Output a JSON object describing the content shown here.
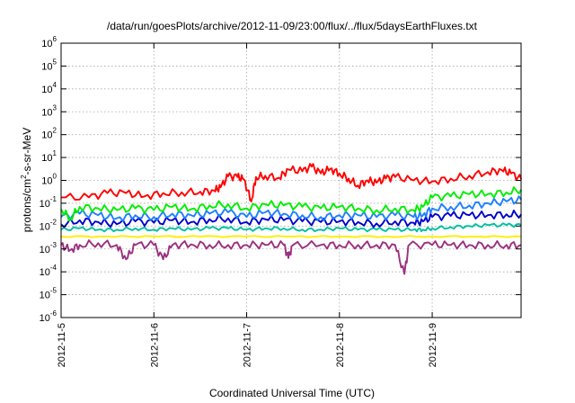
{
  "chart_data": {
    "type": "line",
    "title": "/data/run/goesPlots/archive/2012-11-09/23:00/flux/../flux/5daysEarthFluxes.txt",
    "xlabel": "Coordinated Universal Time (UTC)",
    "ylabel": "protons/cm2-s-sr-MeV",
    "ylabel_parts": {
      "pre": "protons/cm",
      "sup": "2",
      "post": "-s-sr-MeV"
    },
    "y_scale": "log",
    "ylim": [
      1e-06,
      1000000.0
    ],
    "y_ticks": [
      {
        "value": 1000000.0,
        "base": "10",
        "exp": "6"
      },
      {
        "value": 100000.0,
        "base": "10",
        "exp": "5"
      },
      {
        "value": 10000.0,
        "base": "10",
        "exp": "4"
      },
      {
        "value": 1000.0,
        "base": "10",
        "exp": "3"
      },
      {
        "value": 100.0,
        "base": "10",
        "exp": "2"
      },
      {
        "value": 10.0,
        "base": "10",
        "exp": "1"
      },
      {
        "value": 1.0,
        "base": "10",
        "exp": "0"
      },
      {
        "value": 0.1,
        "base": "10",
        "exp": "-1"
      },
      {
        "value": 0.01,
        "base": "10",
        "exp": "-2"
      },
      {
        "value": 0.001,
        "base": "10",
        "exp": "-3"
      },
      {
        "value": 0.0001,
        "base": "10",
        "exp": "-4"
      },
      {
        "value": 1e-05,
        "base": "10",
        "exp": "-5"
      },
      {
        "value": 1e-06,
        "base": "10",
        "exp": "-6"
      }
    ],
    "xlim": [
      "2012-11-05",
      "2012-11-09 23:00"
    ],
    "x_ticks": [
      "2012-11-5",
      "2012-11-6",
      "2012-11-7",
      "2012-11-8",
      "2012-11-9"
    ],
    "grid": true,
    "legend": "none",
    "series": [
      {
        "color": "#ff0000",
        "values": [
          [
            0,
            0.18
          ],
          [
            0.3,
            0.18
          ],
          [
            0.5,
            0.28
          ],
          [
            0.7,
            0.28
          ],
          [
            0.9,
            0.2
          ],
          [
            1.1,
            0.28
          ],
          [
            1.3,
            0.3
          ],
          [
            1.5,
            0.32
          ],
          [
            1.65,
            0.36
          ],
          [
            1.72,
            0.5
          ],
          [
            1.8,
            1.5
          ],
          [
            1.9,
            1.4
          ],
          [
            1.97,
            1.1
          ],
          [
            2.05,
            0.12
          ],
          [
            2.1,
            1.4
          ],
          [
            2.2,
            1.6
          ],
          [
            2.35,
            1.3
          ],
          [
            2.45,
            3.0
          ],
          [
            2.6,
            2.5
          ],
          [
            2.7,
            4.0
          ],
          [
            2.8,
            2.0
          ],
          [
            2.9,
            3.2
          ],
          [
            3.0,
            2.0
          ],
          [
            3.1,
            1.2
          ],
          [
            3.2,
            0.6
          ],
          [
            3.3,
            1.0
          ],
          [
            3.4,
            0.8
          ],
          [
            3.5,
            1.2
          ],
          [
            3.6,
            1.4
          ],
          [
            3.8,
            1.0
          ],
          [
            4.0,
            0.9
          ],
          [
            4.2,
            1.2
          ],
          [
            4.4,
            1.6
          ],
          [
            4.6,
            2.3
          ],
          [
            4.75,
            2.8
          ],
          [
            4.85,
            2.0
          ],
          [
            4.96,
            1.1
          ]
        ]
      },
      {
        "color": "#00ee00",
        "values": [
          [
            0,
            0.055
          ],
          [
            0.1,
            0.022
          ],
          [
            0.2,
            0.07
          ],
          [
            0.4,
            0.06
          ],
          [
            0.6,
            0.05
          ],
          [
            0.8,
            0.06
          ],
          [
            1.0,
            0.05
          ],
          [
            1.2,
            0.07
          ],
          [
            1.4,
            0.055
          ],
          [
            1.6,
            0.08
          ],
          [
            1.8,
            0.09
          ],
          [
            2.0,
            0.06
          ],
          [
            2.2,
            0.09
          ],
          [
            2.4,
            0.08
          ],
          [
            2.6,
            0.07
          ],
          [
            2.8,
            0.06
          ],
          [
            3.0,
            0.07
          ],
          [
            3.2,
            0.06
          ],
          [
            3.4,
            0.05
          ],
          [
            3.6,
            0.06
          ],
          [
            3.8,
            0.05
          ],
          [
            3.9,
            0.07
          ],
          [
            4.0,
            0.18
          ],
          [
            4.2,
            0.2
          ],
          [
            4.4,
            0.25
          ],
          [
            4.6,
            0.25
          ],
          [
            4.8,
            0.3
          ],
          [
            4.96,
            0.4
          ]
        ]
      },
      {
        "color": "#1e7fff",
        "values": [
          [
            0,
            0.025
          ],
          [
            0.2,
            0.035
          ],
          [
            0.4,
            0.03
          ],
          [
            0.6,
            0.022
          ],
          [
            0.8,
            0.03
          ],
          [
            1.0,
            0.025
          ],
          [
            1.2,
            0.035
          ],
          [
            1.4,
            0.03
          ],
          [
            1.6,
            0.035
          ],
          [
            1.8,
            0.04
          ],
          [
            2.0,
            0.025
          ],
          [
            2.2,
            0.04
          ],
          [
            2.4,
            0.035
          ],
          [
            2.6,
            0.03
          ],
          [
            2.8,
            0.025
          ],
          [
            3.0,
            0.03
          ],
          [
            3.2,
            0.03
          ],
          [
            3.4,
            0.025
          ],
          [
            3.6,
            0.03
          ],
          [
            3.8,
            0.025
          ],
          [
            3.9,
            0.03
          ],
          [
            4.0,
            0.06
          ],
          [
            4.2,
            0.07
          ],
          [
            4.4,
            0.08
          ],
          [
            4.6,
            0.1
          ],
          [
            4.8,
            0.12
          ],
          [
            4.96,
            0.14
          ]
        ]
      },
      {
        "color": "#0000cc",
        "values": [
          [
            0,
            0.012
          ],
          [
            0.2,
            0.018
          ],
          [
            0.4,
            0.015
          ],
          [
            0.6,
            0.012
          ],
          [
            0.8,
            0.016
          ],
          [
            1.0,
            0.014
          ],
          [
            1.2,
            0.018
          ],
          [
            1.4,
            0.015
          ],
          [
            1.6,
            0.02
          ],
          [
            1.8,
            0.022
          ],
          [
            2.0,
            0.015
          ],
          [
            2.2,
            0.02
          ],
          [
            2.4,
            0.018
          ],
          [
            2.6,
            0.016
          ],
          [
            2.8,
            0.015
          ],
          [
            3.0,
            0.016
          ],
          [
            3.2,
            0.015
          ],
          [
            3.4,
            0.013
          ],
          [
            3.6,
            0.016
          ],
          [
            3.8,
            0.014
          ],
          [
            3.9,
            0.016
          ],
          [
            4.0,
            0.025
          ],
          [
            4.2,
            0.028
          ],
          [
            4.4,
            0.03
          ],
          [
            4.6,
            0.03
          ],
          [
            4.8,
            0.033
          ],
          [
            4.96,
            0.033
          ]
        ]
      },
      {
        "color": "#00c0a0",
        "values": [
          [
            0,
            0.007
          ],
          [
            0.2,
            0.008
          ],
          [
            0.4,
            0.007
          ],
          [
            0.6,
            0.007
          ],
          [
            0.8,
            0.008
          ],
          [
            1.0,
            0.007
          ],
          [
            1.2,
            0.008
          ],
          [
            1.4,
            0.007
          ],
          [
            1.6,
            0.008
          ],
          [
            1.8,
            0.008
          ],
          [
            2.0,
            0.007
          ],
          [
            2.2,
            0.008
          ],
          [
            2.4,
            0.008
          ],
          [
            2.6,
            0.007
          ],
          [
            2.8,
            0.007
          ],
          [
            3.0,
            0.008
          ],
          [
            3.2,
            0.007
          ],
          [
            3.4,
            0.007
          ],
          [
            3.6,
            0.007
          ],
          [
            3.8,
            0.007
          ],
          [
            3.9,
            0.007
          ],
          [
            4.0,
            0.008
          ],
          [
            4.2,
            0.009
          ],
          [
            4.4,
            0.01
          ],
          [
            4.6,
            0.011
          ],
          [
            4.8,
            0.011
          ],
          [
            4.96,
            0.011
          ]
        ]
      },
      {
        "color": "#ffee00",
        "values": [
          [
            0,
            0.0035
          ],
          [
            0.5,
            0.0035
          ],
          [
            1.0,
            0.0035
          ],
          [
            1.5,
            0.0035
          ],
          [
            2.0,
            0.0035
          ],
          [
            2.5,
            0.0035
          ],
          [
            3.0,
            0.0035
          ],
          [
            3.5,
            0.0035
          ],
          [
            4.0,
            0.0035
          ],
          [
            4.5,
            0.0035
          ],
          [
            4.96,
            0.0035
          ]
        ]
      },
      {
        "color": "#9b3080",
        "values": [
          [
            0,
            0.0015
          ],
          [
            0.1,
            0.0009
          ],
          [
            0.2,
            0.0015
          ],
          [
            0.4,
            0.0018
          ],
          [
            0.6,
            0.0015
          ],
          [
            0.7,
            0.00035
          ],
          [
            0.8,
            0.0015
          ],
          [
            1.0,
            0.0015
          ],
          [
            1.1,
            0.00035
          ],
          [
            1.2,
            0.0015
          ],
          [
            1.4,
            0.0016
          ],
          [
            1.6,
            0.0015
          ],
          [
            1.8,
            0.0015
          ],
          [
            2.0,
            0.0015
          ],
          [
            2.2,
            0.0015
          ],
          [
            2.4,
            0.0015
          ],
          [
            2.45,
            0.0004
          ],
          [
            2.5,
            0.0015
          ],
          [
            2.8,
            0.0015
          ],
          [
            3.0,
            0.0015
          ],
          [
            3.2,
            0.0015
          ],
          [
            3.4,
            0.0015
          ],
          [
            3.6,
            0.0015
          ],
          [
            3.7,
            8e-05
          ],
          [
            3.75,
            0.0015
          ],
          [
            4.0,
            0.0015
          ],
          [
            4.2,
            0.0015
          ],
          [
            4.4,
            0.0015
          ],
          [
            4.6,
            0.0015
          ],
          [
            4.8,
            0.0015
          ],
          [
            4.96,
            0.0015
          ]
        ]
      }
    ]
  }
}
